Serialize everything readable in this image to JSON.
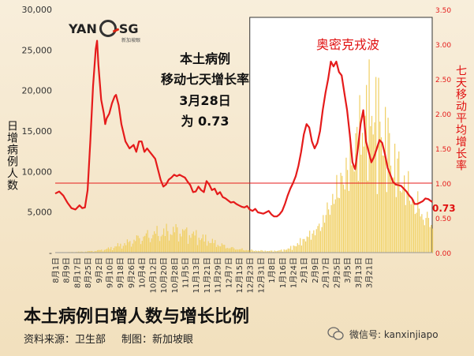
{
  "header": {
    "logo_text": "YAN SG",
    "logo_sub": "新加坡眼"
  },
  "callout": {
    "line1": "本土病例",
    "line2": "移动七天增长率",
    "line3": "3月28日",
    "line4": "为 0.73"
  },
  "omicron_label": "奥密克戎波",
  "ylabel_left": "日增病例人数",
  "ylabel_right": "七天移动平均增长率",
  "latest_value_label": "0.73",
  "title": "本土病例日增人数与增长比例",
  "source": "资料来源：卫生部",
  "credit": "制图：新加坡眼",
  "wechat": "微信号: kanxinjiapo",
  "colors": {
    "bars": "#f0cf62",
    "ratio_line": "#e51b1b",
    "omicron_box": "#ffffff",
    "threshold_line": "#e51b1b"
  },
  "chart_data": {
    "type": "bar+line",
    "x_tick_labels": [
      "8月1日",
      "8月9日",
      "8月17日",
      "8月25日",
      "9月2日",
      "9月10日",
      "9月18日",
      "9月26日",
      "10月4日",
      "10月12日",
      "10月20日",
      "10月28日",
      "11月5日",
      "11月13日",
      "11月21日",
      "11月29日",
      "12月7日",
      "12月15日",
      "12月23日",
      "12月31日",
      "1月8日",
      "1月16日",
      "1月24日",
      "2月1日",
      "2月9日",
      "2月17日",
      "2月25日",
      "3月5日",
      "3月13日",
      "3月21日"
    ],
    "x_start": "8月1日",
    "x_end": "3月28日",
    "left_axis": {
      "label": "日增病例人数",
      "ticks": [
        0,
        5000,
        10000,
        15000,
        20000,
        25000,
        30000
      ],
      "tick_labels": [
        "-",
        "5,000",
        "10,000",
        "15,000",
        "20,000",
        "25,000",
        "30,000"
      ],
      "range": [
        0,
        30000
      ]
    },
    "right_axis": {
      "label": "七天移动平均增长率",
      "ticks": [
        0,
        0.5,
        1.0,
        1.5,
        2.0,
        2.5,
        3.0,
        3.5
      ],
      "tick_labels": [
        "0.00",
        "0.50",
        "1.00",
        "1.50",
        "2.00",
        "2.50",
        "3.00",
        "3.50"
      ],
      "range": [
        0,
        3.5
      ]
    },
    "threshold": 1.0,
    "omicron_period": {
      "start": "12月23日",
      "end": "3月28日"
    },
    "bars_series": {
      "name": "日增病例人数",
      "keypoints": [
        [
          0,
          50
        ],
        [
          10,
          80
        ],
        [
          20,
          150
        ],
        [
          30,
          300
        ],
        [
          38,
          600
        ],
        [
          45,
          1100
        ],
        [
          55,
          1800
        ],
        [
          62,
          2500
        ],
        [
          72,
          3200
        ],
        [
          82,
          3600
        ],
        [
          88,
          3800
        ],
        [
          95,
          3500
        ],
        [
          105,
          2800
        ],
        [
          112,
          2200
        ],
        [
          120,
          1500
        ],
        [
          130,
          800
        ],
        [
          140,
          500
        ],
        [
          148,
          350
        ],
        [
          160,
          280
        ],
        [
          168,
          400
        ],
        [
          175,
          900
        ],
        [
          182,
          2000
        ],
        [
          188,
          3000
        ],
        [
          195,
          4500
        ],
        [
          200,
          7000
        ],
        [
          205,
          9500
        ],
        [
          210,
          12500
        ],
        [
          215,
          14000
        ],
        [
          220,
          17000
        ],
        [
          224,
          20000
        ],
        [
          228,
          22500
        ],
        [
          232,
          24500
        ],
        [
          235,
          25000
        ],
        [
          238,
          23000
        ],
        [
          242,
          21000
        ],
        [
          246,
          18500
        ],
        [
          250,
          16000
        ],
        [
          254,
          14000
        ],
        [
          258,
          12000
        ],
        [
          262,
          10500
        ],
        [
          266,
          9000
        ],
        [
          270,
          7500
        ],
        [
          274,
          6000
        ],
        [
          279,
          5000
        ]
      ]
    },
    "ratio_series": {
      "name": "七天移动平均增长率",
      "keypoints": [
        [
          0,
          0.85
        ],
        [
          3,
          0.88
        ],
        [
          6,
          0.82
        ],
        [
          9,
          0.72
        ],
        [
          12,
          0.64
        ],
        [
          15,
          0.62
        ],
        [
          18,
          0.68
        ],
        [
          20,
          0.64
        ],
        [
          22,
          0.65
        ],
        [
          24,
          0.9
        ],
        [
          26,
          1.6
        ],
        [
          28,
          2.4
        ],
        [
          30,
          2.93
        ],
        [
          31,
          3.05
        ],
        [
          32,
          2.7
        ],
        [
          34,
          2.2
        ],
        [
          36,
          2.0
        ],
        [
          37,
          1.85
        ],
        [
          38,
          1.93
        ],
        [
          40,
          2.0
        ],
        [
          42,
          2.15
        ],
        [
          44,
          2.25
        ],
        [
          45,
          2.27
        ],
        [
          47,
          2.12
        ],
        [
          49,
          1.85
        ],
        [
          52,
          1.6
        ],
        [
          55,
          1.5
        ],
        [
          58,
          1.55
        ],
        [
          60,
          1.45
        ],
        [
          62,
          1.6
        ],
        [
          64,
          1.6
        ],
        [
          66,
          1.45
        ],
        [
          68,
          1.5
        ],
        [
          70,
          1.45
        ],
        [
          72,
          1.4
        ],
        [
          74,
          1.35
        ],
        [
          76,
          1.2
        ],
        [
          78,
          1.05
        ],
        [
          80,
          0.95
        ],
        [
          82,
          0.98
        ],
        [
          84,
          1.05
        ],
        [
          86,
          1.08
        ],
        [
          88,
          1.12
        ],
        [
          90,
          1.1
        ],
        [
          92,
          1.12
        ],
        [
          94,
          1.1
        ],
        [
          96,
          1.08
        ],
        [
          98,
          1.02
        ],
        [
          100,
          0.97
        ],
        [
          102,
          0.87
        ],
        [
          104,
          0.88
        ],
        [
          106,
          0.95
        ],
        [
          108,
          0.9
        ],
        [
          110,
          0.87
        ],
        [
          112,
          1.03
        ],
        [
          114,
          0.98
        ],
        [
          116,
          0.9
        ],
        [
          118,
          0.92
        ],
        [
          120,
          0.84
        ],
        [
          122,
          0.87
        ],
        [
          124,
          0.8
        ],
        [
          126,
          0.78
        ],
        [
          128,
          0.75
        ],
        [
          130,
          0.72
        ],
        [
          132,
          0.73
        ],
        [
          134,
          0.7
        ],
        [
          136,
          0.68
        ],
        [
          138,
          0.66
        ],
        [
          140,
          0.65
        ],
        [
          142,
          0.67
        ],
        [
          144,
          0.62
        ],
        [
          146,
          0.6
        ],
        [
          148,
          0.63
        ],
        [
          150,
          0.58
        ],
        [
          152,
          0.57
        ],
        [
          154,
          0.56
        ],
        [
          156,
          0.58
        ],
        [
          158,
          0.6
        ],
        [
          160,
          0.55
        ],
        [
          162,
          0.52
        ],
        [
          164,
          0.52
        ],
        [
          166,
          0.55
        ],
        [
          168,
          0.6
        ],
        [
          170,
          0.7
        ],
        [
          172,
          0.82
        ],
        [
          174,
          0.92
        ],
        [
          176,
          1.0
        ],
        [
          178,
          1.1
        ],
        [
          180,
          1.25
        ],
        [
          182,
          1.45
        ],
        [
          184,
          1.7
        ],
        [
          186,
          1.85
        ],
        [
          188,
          1.8
        ],
        [
          190,
          1.6
        ],
        [
          192,
          1.5
        ],
        [
          194,
          1.58
        ],
        [
          196,
          1.75
        ],
        [
          198,
          2.05
        ],
        [
          200,
          2.3
        ],
        [
          202,
          2.5
        ],
        [
          204,
          2.75
        ],
        [
          206,
          2.68
        ],
        [
          208,
          2.75
        ],
        [
          210,
          2.6
        ],
        [
          212,
          2.55
        ],
        [
          214,
          2.3
        ],
        [
          216,
          2.05
        ],
        [
          218,
          1.7
        ],
        [
          220,
          1.3
        ],
        [
          222,
          1.2
        ],
        [
          224,
          1.5
        ],
        [
          226,
          1.85
        ],
        [
          228,
          2.05
        ],
        [
          230,
          1.6
        ],
        [
          232,
          1.45
        ],
        [
          234,
          1.3
        ],
        [
          236,
          1.38
        ],
        [
          238,
          1.5
        ],
        [
          240,
          1.62
        ],
        [
          242,
          1.58
        ],
        [
          244,
          1.42
        ],
        [
          246,
          1.22
        ],
        [
          248,
          1.12
        ],
        [
          250,
          1.02
        ],
        [
          252,
          0.98
        ],
        [
          254,
          0.97
        ],
        [
          256,
          0.96
        ],
        [
          258,
          0.92
        ],
        [
          260,
          0.88
        ],
        [
          262,
          0.82
        ],
        [
          264,
          0.78
        ],
        [
          266,
          0.7
        ],
        [
          268,
          0.7
        ],
        [
          270,
          0.72
        ],
        [
          272,
          0.74
        ],
        [
          274,
          0.78
        ],
        [
          276,
          0.77
        ],
        [
          279,
          0.73
        ]
      ]
    },
    "legend_position": "none",
    "grid": false
  }
}
